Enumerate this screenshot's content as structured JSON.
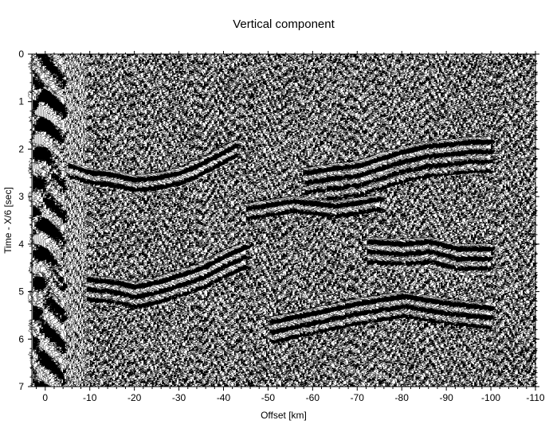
{
  "chart_data": {
    "type": "seismic-section",
    "title": "Vertical component",
    "xlabel": "Offset [km]",
    "ylabel": "Time - X/6 [sec]",
    "xlim": [
      3,
      -110
    ],
    "ylim": [
      0,
      7
    ],
    "x_ticks": [
      0,
      -10,
      -20,
      -30,
      -40,
      -50,
      -60,
      -70,
      -80,
      -90,
      -100,
      -110
    ],
    "x_tick_labels": [
      "0",
      "-10",
      "-20",
      "-30",
      "-40",
      "-50",
      "-60",
      "-70",
      "-80",
      "-90",
      "-100",
      "-110"
    ],
    "y_ticks": [
      0,
      1,
      2,
      3,
      4,
      5,
      6,
      7
    ],
    "y_tick_labels": [
      "0",
      "1",
      "2",
      "3",
      "4",
      "5",
      "6",
      "7"
    ],
    "wiggle_fill": "#000000",
    "background": "#ffffff",
    "phases": [
      {
        "points": [
          [
            -5,
            2.3
          ],
          [
            -10,
            2.45
          ],
          [
            -15,
            2.5
          ],
          [
            -20,
            2.6
          ],
          [
            -25,
            2.55
          ],
          [
            -30,
            2.45
          ],
          [
            -35,
            2.25
          ],
          [
            -40,
            2.0
          ],
          [
            -43,
            1.85
          ]
        ],
        "band": 0.35
      },
      {
        "points": [
          [
            -9,
            4.7
          ],
          [
            -15,
            4.75
          ],
          [
            -20,
            4.85
          ],
          [
            -25,
            4.75
          ],
          [
            -30,
            4.6
          ],
          [
            -35,
            4.45
          ],
          [
            -40,
            4.2
          ],
          [
            -45,
            4.0
          ]
        ],
        "band": 0.55
      },
      {
        "points": [
          [
            -58,
            2.45
          ],
          [
            -65,
            2.35
          ],
          [
            -70,
            2.3
          ],
          [
            -75,
            2.15
          ],
          [
            -80,
            2.0
          ],
          [
            -85,
            1.9
          ],
          [
            -90,
            1.85
          ],
          [
            -95,
            1.8
          ],
          [
            -100,
            1.8
          ]
        ],
        "band": 0.7
      },
      {
        "points": [
          [
            -72,
            3.9
          ],
          [
            -80,
            3.95
          ],
          [
            -86,
            3.9
          ],
          [
            -92,
            4.05
          ],
          [
            -100,
            4.05
          ]
        ],
        "band": 0.6
      },
      {
        "points": [
          [
            -45,
            3.2
          ],
          [
            -55,
            3.05
          ],
          [
            -65,
            3.15
          ],
          [
            -75,
            3.0
          ]
        ],
        "band": 0.3
      },
      {
        "points": [
          [
            -50,
            5.6
          ],
          [
            -60,
            5.4
          ],
          [
            -70,
            5.2
          ],
          [
            -80,
            5.05
          ],
          [
            -90,
            5.2
          ],
          [
            -100,
            5.3
          ]
        ],
        "band": 0.5
      }
    ],
    "near_offset_arrivals": [
      {
        "x": 0.5,
        "t": 0.75
      },
      {
        "x": 0.5,
        "t": 3.4
      }
    ]
  }
}
